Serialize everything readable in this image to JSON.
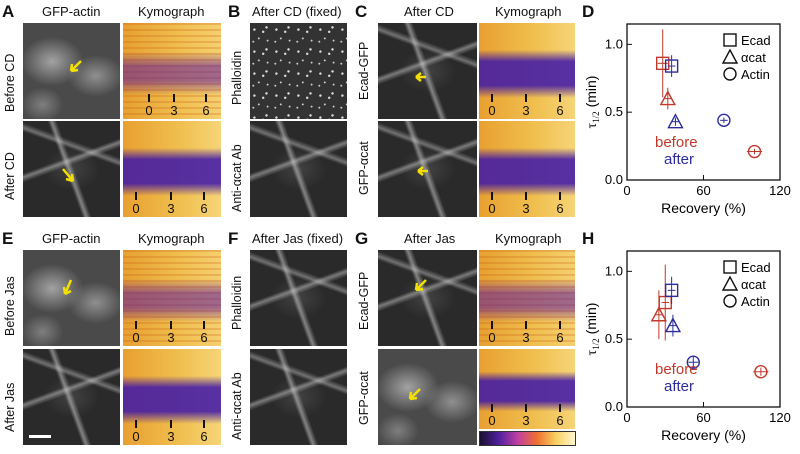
{
  "panels": {
    "A": {
      "letter": "A",
      "title": "GFP-actin",
      "kymo_title": "Kymograph",
      "row1": "Before CD",
      "row2": "After CD"
    },
    "B": {
      "letter": "B",
      "title": "After CD (fixed)",
      "row1": "Phalloidin",
      "row2": "Anti-αcat Ab"
    },
    "C": {
      "letter": "C",
      "title": "After CD",
      "kymo_title": "Kymograph",
      "row1": "Ecad-GFP",
      "row2": "GFP-αcat"
    },
    "D": {
      "letter": "D"
    },
    "E": {
      "letter": "E",
      "title": "GFP-actin",
      "kymo_title": "Kymograph",
      "row1": "Before Jas",
      "row2": "After Jas"
    },
    "F": {
      "letter": "F",
      "title": "After Jas (fixed)",
      "row1": "Phalloidin",
      "row2": "Anti-αcat Ab"
    },
    "G": {
      "letter": "G",
      "title": "After Jas",
      "kymo_title": "Kymograph",
      "row1": "Ecad-GFP",
      "row2": "GFP-αcat"
    },
    "H": {
      "letter": "H"
    }
  },
  "kymo_ticks": [
    "0",
    "3",
    "6"
  ],
  "colors": {
    "before": "#c0392b",
    "after": "#2c2c9c",
    "arrow": "#f3e000"
  },
  "chart_data": [
    {
      "type": "scatter",
      "panel": "D",
      "xlabel": "Recovery (%)",
      "ylabel": "τ",
      "ylabel_sub": "1/2",
      "ylabel_suffix": " (min)",
      "xlim": [
        0,
        120
      ],
      "ylim": [
        0,
        1.15
      ],
      "xticks": [
        "0",
        "60",
        "120"
      ],
      "yticks": [
        "0.0",
        "0.5",
        "1.0"
      ],
      "legend": [
        "Ecad",
        "αcat",
        "Actin"
      ],
      "annotations": [
        "before",
        "after"
      ],
      "series": [
        {
          "name": "before",
          "points": [
            {
              "marker": "square",
              "x": 28,
              "y": 0.86,
              "xerr": 4,
              "yerr": 0.25
            },
            {
              "marker": "triangle",
              "x": 32,
              "y": 0.6,
              "xerr": 3,
              "yerr": 0.08
            },
            {
              "marker": "circle",
              "x": 100,
              "y": 0.21,
              "xerr": 6,
              "yerr": 0.02
            }
          ]
        },
        {
          "name": "after",
          "points": [
            {
              "marker": "square",
              "x": 35,
              "y": 0.84,
              "xerr": 3,
              "yerr": 0.08
            },
            {
              "marker": "triangle",
              "x": 38,
              "y": 0.43,
              "xerr": 3,
              "yerr": 0.03
            },
            {
              "marker": "circle",
              "x": 76,
              "y": 0.44,
              "xerr": 3,
              "yerr": 0.02
            }
          ]
        }
      ]
    },
    {
      "type": "scatter",
      "panel": "H",
      "xlabel": "Recovery (%)",
      "ylabel": "τ",
      "ylabel_sub": "1/2",
      "ylabel_suffix": " (min)",
      "xlim": [
        0,
        120
      ],
      "ylim": [
        0,
        1.15
      ],
      "xticks": [
        "0",
        "60",
        "120"
      ],
      "yticks": [
        "0.0",
        "0.5",
        "1.0"
      ],
      "legend": [
        "Ecad",
        "αcat",
        "Actin"
      ],
      "annotations": [
        "before",
        "after"
      ],
      "series": [
        {
          "name": "before",
          "points": [
            {
              "marker": "square",
              "x": 30,
              "y": 0.77,
              "xerr": 3,
              "yerr": 0.28
            },
            {
              "marker": "triangle",
              "x": 25,
              "y": 0.68,
              "xerr": 3,
              "yerr": 0.18
            },
            {
              "marker": "circle",
              "x": 105,
              "y": 0.26,
              "xerr": 6,
              "yerr": 0.03
            }
          ]
        },
        {
          "name": "after",
          "points": [
            {
              "marker": "square",
              "x": 35,
              "y": 0.86,
              "xerr": 3,
              "yerr": 0.1
            },
            {
              "marker": "triangle",
              "x": 36,
              "y": 0.6,
              "xerr": 3,
              "yerr": 0.08
            },
            {
              "marker": "circle",
              "x": 52,
              "y": 0.33,
              "xerr": 4,
              "yerr": 0.04
            }
          ]
        }
      ]
    }
  ]
}
